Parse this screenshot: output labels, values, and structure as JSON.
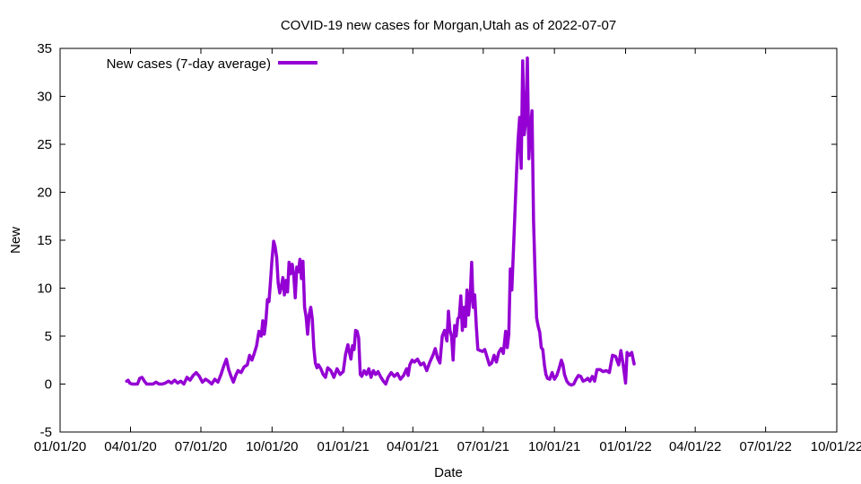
{
  "chart_data": {
    "type": "line",
    "title": "COVID-19 new cases for Morgan,Utah as of 2022-07-07",
    "xlabel": "Date",
    "ylabel": "New",
    "xlim_days": [
      0,
      1004
    ],
    "ylim": [
      -5,
      35
    ],
    "yticks": [
      -5,
      0,
      5,
      10,
      15,
      20,
      25,
      30,
      35
    ],
    "xticks": [
      {
        "label": "01/01/20",
        "day": 0
      },
      {
        "label": "04/01/20",
        "day": 91
      },
      {
        "label": "07/01/20",
        "day": 182
      },
      {
        "label": "10/01/20",
        "day": 274
      },
      {
        "label": "01/01/21",
        "day": 366
      },
      {
        "label": "04/01/21",
        "day": 456
      },
      {
        "label": "07/01/21",
        "day": 547
      },
      {
        "label": "10/01/21",
        "day": 639
      },
      {
        "label": "01/01/22",
        "day": 731
      },
      {
        "label": "04/01/22",
        "day": 821
      },
      {
        "label": "07/01/22",
        "day": 912
      },
      {
        "label": "10/01/22",
        "day": 1004
      }
    ],
    "grid": false,
    "legend": {
      "position": "top-left"
    },
    "series": [
      {
        "name": "New cases (7-day average)",
        "color": "#9400d3",
        "points": [
          [
            86,
            0.3
          ],
          [
            88,
            0.4
          ],
          [
            90,
            0.1
          ],
          [
            93,
            0.0
          ],
          [
            96,
            0.0
          ],
          [
            100,
            0.0
          ],
          [
            103,
            0.6
          ],
          [
            106,
            0.7
          ],
          [
            109,
            0.3
          ],
          [
            112,
            0.0
          ],
          [
            116,
            0.0
          ],
          [
            120,
            0.0
          ],
          [
            124,
            0.2
          ],
          [
            128,
            0.0
          ],
          [
            132,
            0.0
          ],
          [
            136,
            0.1
          ],
          [
            140,
            0.3
          ],
          [
            144,
            0.1
          ],
          [
            148,
            0.4
          ],
          [
            152,
            0.1
          ],
          [
            156,
            0.3
          ],
          [
            160,
            0.0
          ],
          [
            164,
            0.7
          ],
          [
            168,
            0.4
          ],
          [
            172,
            0.9
          ],
          [
            176,
            1.2
          ],
          [
            180,
            0.8
          ],
          [
            184,
            0.2
          ],
          [
            188,
            0.5
          ],
          [
            192,
            0.3
          ],
          [
            196,
            0.0
          ],
          [
            200,
            0.5
          ],
          [
            204,
            0.2
          ],
          [
            208,
            1.0
          ],
          [
            212,
            2.0
          ],
          [
            215,
            2.6
          ],
          [
            218,
            1.5
          ],
          [
            221,
            0.8
          ],
          [
            224,
            0.2
          ],
          [
            227,
            0.9
          ],
          [
            230,
            1.4
          ],
          [
            234,
            1.2
          ],
          [
            238,
            1.8
          ],
          [
            242,
            2.0
          ],
          [
            245,
            3.0
          ],
          [
            248,
            2.5
          ],
          [
            251,
            3.2
          ],
          [
            254,
            4.0
          ],
          [
            257,
            5.5
          ],
          [
            260,
            5.0
          ],
          [
            262,
            6.6
          ],
          [
            264,
            5.2
          ],
          [
            266,
            6.5
          ],
          [
            268,
            8.8
          ],
          [
            270,
            8.6
          ],
          [
            272,
            10.7
          ],
          [
            274,
            13.0
          ],
          [
            276,
            14.9
          ],
          [
            278,
            14.3
          ],
          [
            280,
            13.2
          ],
          [
            282,
            10.5
          ],
          [
            284,
            9.5
          ],
          [
            286,
            10.2
          ],
          [
            288,
            11.1
          ],
          [
            290,
            9.3
          ],
          [
            292,
            10.8
          ],
          [
            294,
            9.6
          ],
          [
            296,
            12.7
          ],
          [
            298,
            11.5
          ],
          [
            300,
            12.5
          ],
          [
            302,
            11.4
          ],
          [
            304,
            9.0
          ],
          [
            306,
            12.2
          ],
          [
            308,
            11.7
          ],
          [
            310,
            13.0
          ],
          [
            312,
            11.0
          ],
          [
            314,
            12.8
          ],
          [
            316,
            8.0
          ],
          [
            318,
            7.0
          ],
          [
            320,
            5.2
          ],
          [
            322,
            7.2
          ],
          [
            324,
            8.0
          ],
          [
            326,
            6.8
          ],
          [
            328,
            3.8
          ],
          [
            330,
            2.2
          ],
          [
            332,
            1.7
          ],
          [
            334,
            2.0
          ],
          [
            337,
            1.6
          ],
          [
            340,
            1.0
          ],
          [
            343,
            0.7
          ],
          [
            346,
            1.7
          ],
          [
            350,
            1.4
          ],
          [
            354,
            0.7
          ],
          [
            358,
            1.6
          ],
          [
            362,
            1.0
          ],
          [
            366,
            1.3
          ],
          [
            369,
            3.1
          ],
          [
            372,
            4.1
          ],
          [
            374,
            3.3
          ],
          [
            376,
            2.6
          ],
          [
            378,
            4.0
          ],
          [
            380,
            3.6
          ],
          [
            382,
            5.6
          ],
          [
            384,
            5.5
          ],
          [
            386,
            4.8
          ],
          [
            388,
            1.0
          ],
          [
            390,
            0.8
          ],
          [
            393,
            1.4
          ],
          [
            396,
            1.0
          ],
          [
            399,
            1.6
          ],
          [
            402,
            0.7
          ],
          [
            405,
            1.4
          ],
          [
            408,
            1.0
          ],
          [
            411,
            1.3
          ],
          [
            414,
            0.8
          ],
          [
            418,
            0.3
          ],
          [
            421,
            0.0
          ],
          [
            424,
            0.7
          ],
          [
            428,
            1.2
          ],
          [
            432,
            0.8
          ],
          [
            436,
            1.1
          ],
          [
            440,
            0.5
          ],
          [
            444,
            0.9
          ],
          [
            448,
            1.6
          ],
          [
            450,
            0.9
          ],
          [
            452,
            2.0
          ],
          [
            455,
            2.5
          ],
          [
            458,
            2.3
          ],
          [
            462,
            2.6
          ],
          [
            466,
            2.0
          ],
          [
            470,
            2.2
          ],
          [
            474,
            1.4
          ],
          [
            478,
            2.3
          ],
          [
            482,
            3.0
          ],
          [
            485,
            3.7
          ],
          [
            488,
            2.7
          ],
          [
            491,
            2.2
          ],
          [
            494,
            5.0
          ],
          [
            497,
            5.6
          ],
          [
            500,
            4.5
          ],
          [
            502,
            7.6
          ],
          [
            504,
            5.6
          ],
          [
            506,
            5.0
          ],
          [
            508,
            2.5
          ],
          [
            510,
            6.1
          ],
          [
            512,
            5.0
          ],
          [
            514,
            6.8
          ],
          [
            516,
            7.0
          ],
          [
            518,
            9.2
          ],
          [
            520,
            5.6
          ],
          [
            522,
            8.0
          ],
          [
            524,
            6.0
          ],
          [
            526,
            9.8
          ],
          [
            528,
            7.2
          ],
          [
            530,
            9.0
          ],
          [
            532,
            12.7
          ],
          [
            534,
            8.0
          ],
          [
            536,
            9.3
          ],
          [
            538,
            6.0
          ],
          [
            540,
            3.6
          ],
          [
            543,
            3.5
          ],
          [
            546,
            3.4
          ],
          [
            549,
            3.6
          ],
          [
            552,
            2.8
          ],
          [
            555,
            2.0
          ],
          [
            558,
            2.2
          ],
          [
            561,
            3.0
          ],
          [
            564,
            2.3
          ],
          [
            567,
            3.3
          ],
          [
            570,
            3.7
          ],
          [
            573,
            3.2
          ],
          [
            576,
            5.5
          ],
          [
            578,
            3.8
          ],
          [
            580,
            5.2
          ],
          [
            582,
            12.0
          ],
          [
            584,
            9.8
          ],
          [
            586,
            14.0
          ],
          [
            588,
            18.0
          ],
          [
            590,
            22.0
          ],
          [
            592,
            25.4
          ],
          [
            594,
            27.8
          ],
          [
            596,
            22.5
          ],
          [
            598,
            33.7
          ],
          [
            600,
            26.0
          ],
          [
            602,
            27.5
          ],
          [
            604,
            34.0
          ],
          [
            606,
            23.5
          ],
          [
            608,
            26.7
          ],
          [
            610,
            28.5
          ],
          [
            612,
            17.0
          ],
          [
            614,
            11.5
          ],
          [
            616,
            6.9
          ],
          [
            618,
            6.0
          ],
          [
            620,
            5.4
          ],
          [
            622,
            3.8
          ],
          [
            624,
            3.6
          ],
          [
            626,
            2.0
          ],
          [
            628,
            1.0
          ],
          [
            630,
            0.6
          ],
          [
            633,
            0.5
          ],
          [
            636,
            1.2
          ],
          [
            639,
            0.5
          ],
          [
            642,
            0.9
          ],
          [
            645,
            1.6
          ],
          [
            648,
            2.5
          ],
          [
            650,
            2.0
          ],
          [
            652,
            1.0
          ],
          [
            655,
            0.3
          ],
          [
            658,
            0.0
          ],
          [
            661,
            -0.1
          ],
          [
            664,
            0.0
          ],
          [
            667,
            0.5
          ],
          [
            670,
            0.9
          ],
          [
            673,
            0.8
          ],
          [
            676,
            0.3
          ],
          [
            679,
            0.4
          ],
          [
            682,
            0.6
          ],
          [
            685,
            0.3
          ],
          [
            688,
            0.8
          ],
          [
            691,
            0.3
          ],
          [
            694,
            1.5
          ],
          [
            698,
            1.5
          ],
          [
            702,
            1.3
          ],
          [
            706,
            1.4
          ],
          [
            710,
            1.2
          ],
          [
            714,
            3.0
          ],
          [
            718,
            2.9
          ],
          [
            722,
            2.0
          ],
          [
            725,
            3.5
          ],
          [
            728,
            2.0
          ],
          [
            731,
            0.1
          ],
          [
            733,
            3.3
          ],
          [
            736,
            3.0
          ],
          [
            739,
            3.3
          ],
          [
            742,
            2.1
          ]
        ]
      }
    ]
  }
}
